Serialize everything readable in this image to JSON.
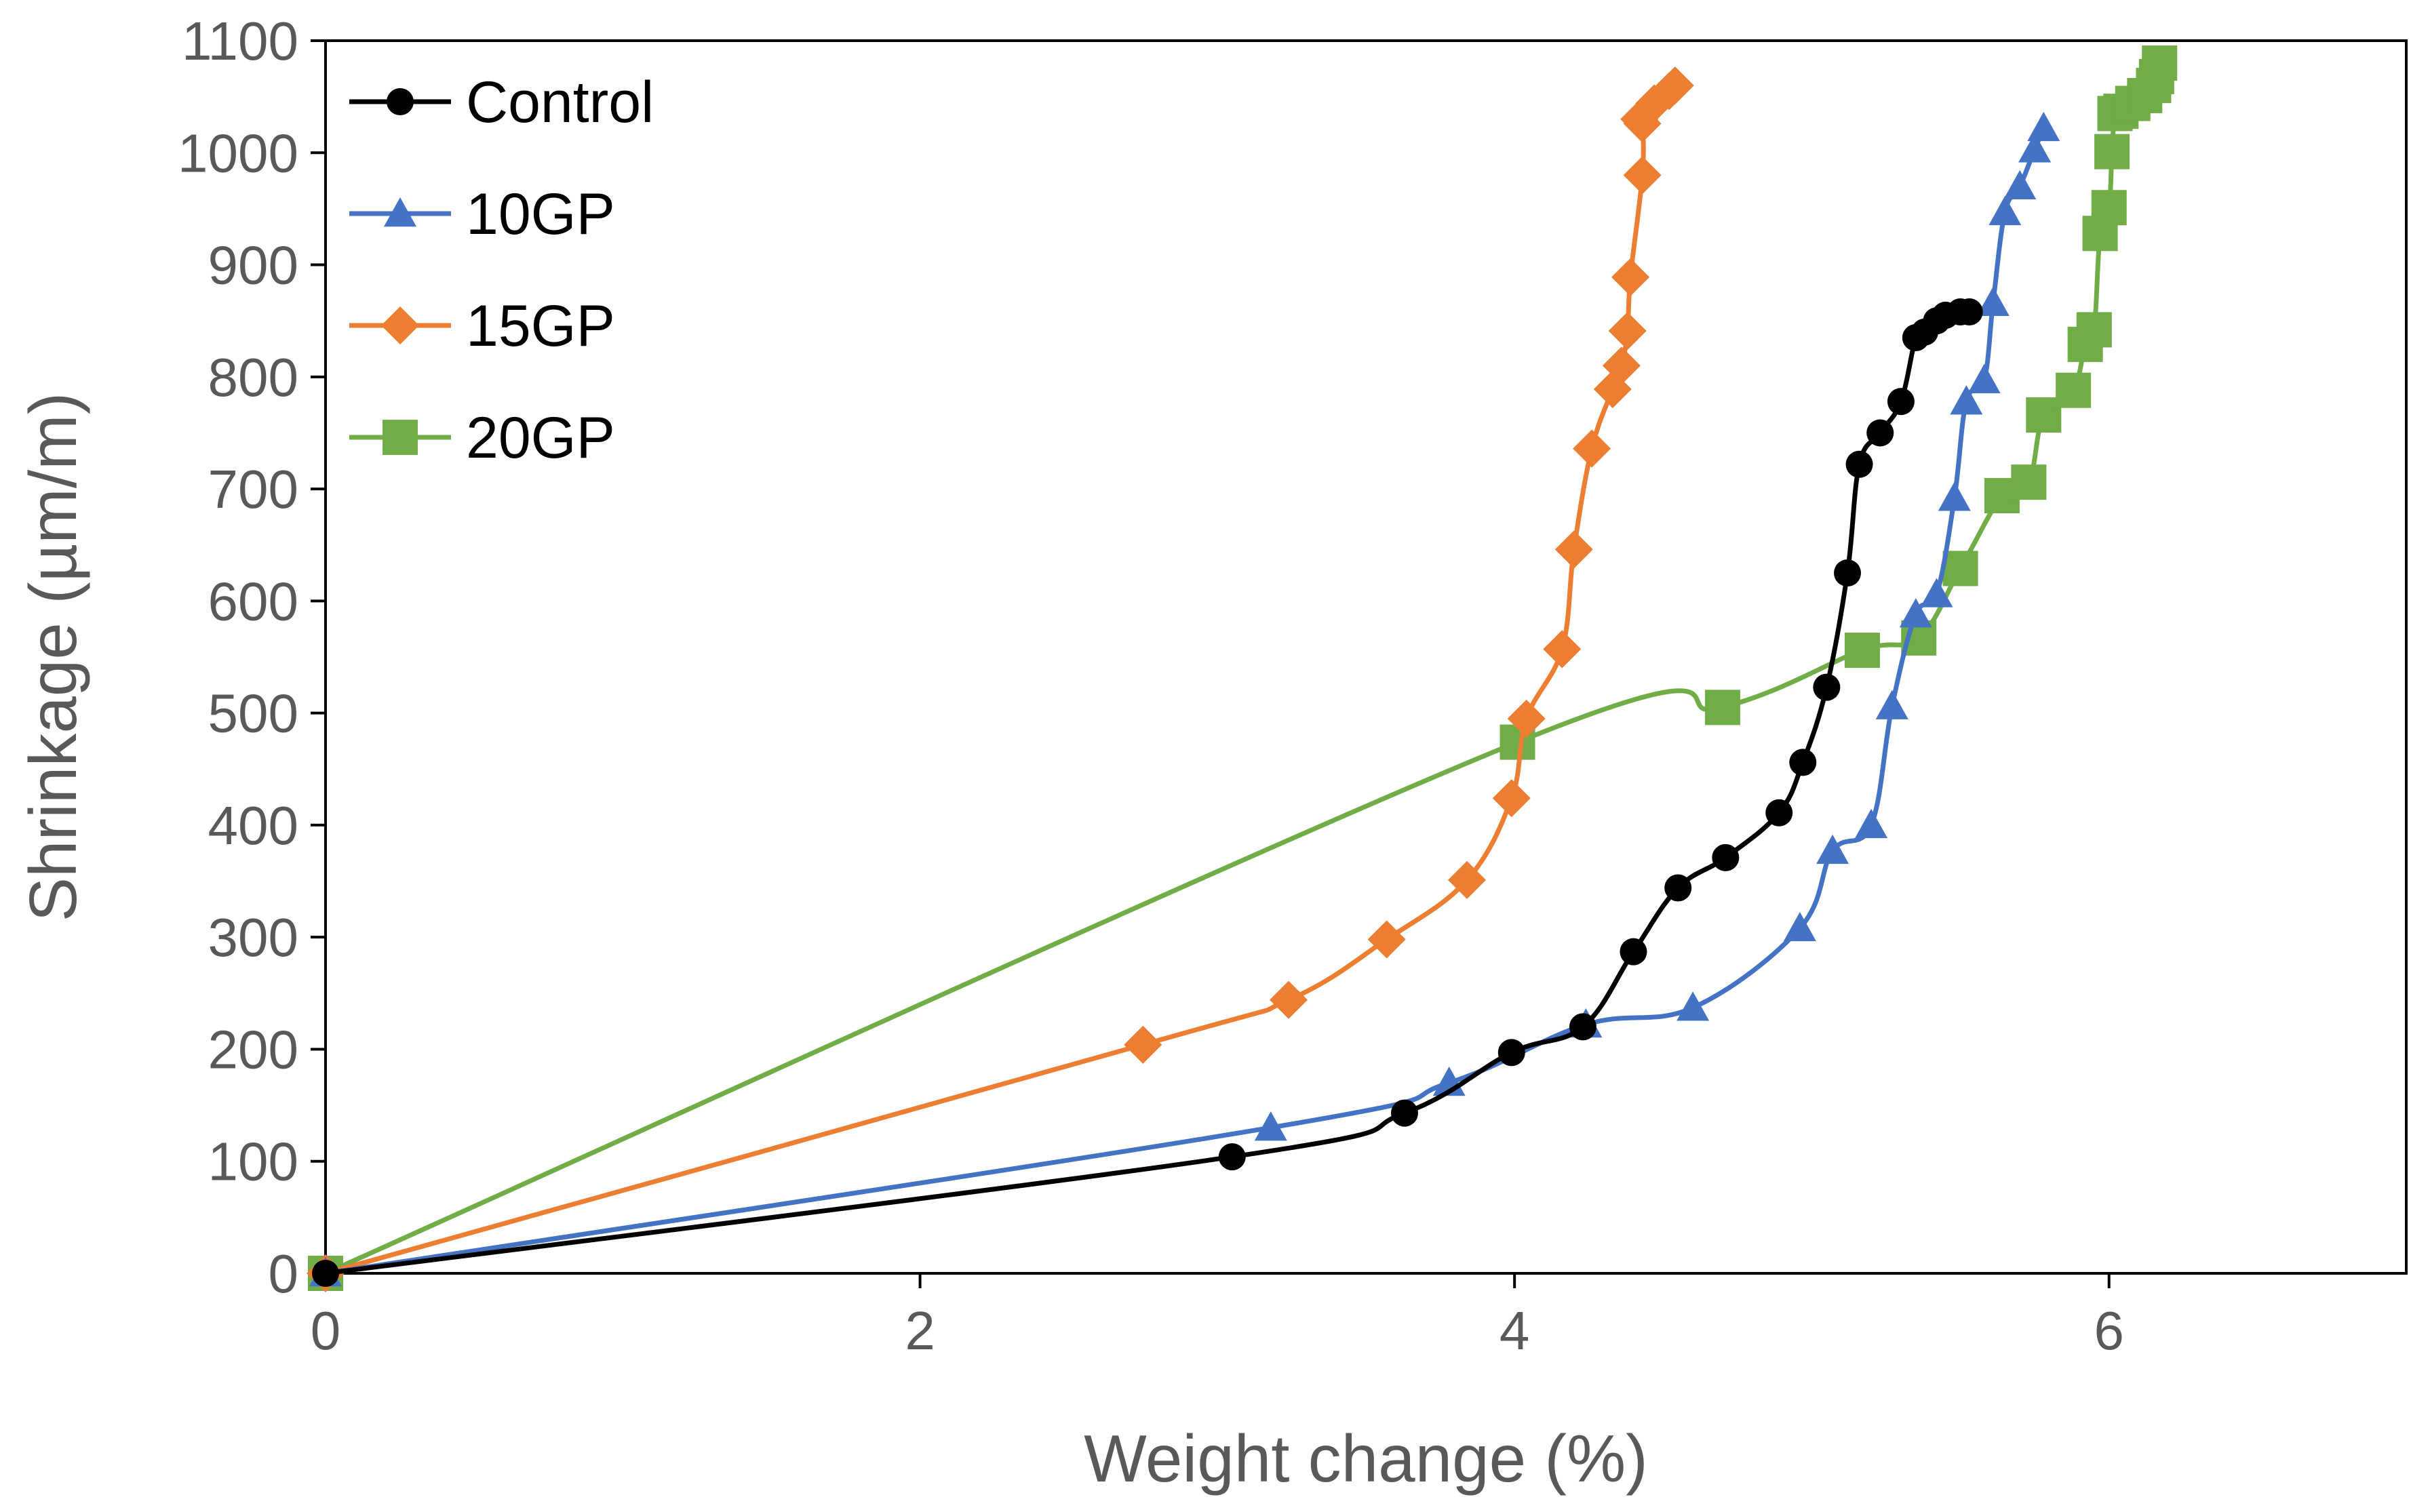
{
  "chart_data": {
    "type": "line",
    "title": "",
    "xlabel": "Weight change (%)",
    "ylabel": "Shrinkage (µm/m)",
    "xlim": [
      0,
      7
    ],
    "ylim": [
      0,
      1100
    ],
    "xticks": [
      0,
      2,
      4,
      6
    ],
    "xtick_labels": [
      "0",
      "2",
      "4",
      "6"
    ],
    "yticks": [
      0,
      100,
      200,
      300,
      400,
      500,
      600,
      700,
      800,
      900,
      1000,
      1100
    ],
    "ytick_labels": [
      "0",
      "100",
      "200",
      "300",
      "400",
      "500",
      "600",
      "700",
      "800",
      "900",
      "1000",
      "1100"
    ],
    "grid": false,
    "legend_position": "top-left",
    "series": [
      {
        "name": "Control",
        "color": "#000000",
        "marker": "circle",
        "x": [
          0,
          3.05,
          3.63,
          3.99,
          4.23,
          4.4,
          4.55,
          4.71,
          4.89,
          4.97,
          5.05,
          5.12,
          5.16,
          5.23,
          5.3,
          5.35,
          5.38,
          5.42,
          5.45,
          5.5,
          5.53
        ],
        "y": [
          0,
          104,
          143,
          197,
          220,
          287,
          344,
          371,
          411,
          456,
          523,
          625,
          722,
          750,
          778,
          835,
          840,
          850,
          855,
          858,
          858
        ]
      },
      {
        "name": "10GP",
        "color": "#4472C4",
        "marker": "triangle",
        "x": [
          0,
          3.18,
          3.78,
          4.24,
          4.6,
          4.96,
          5.07,
          5.2,
          5.27,
          5.35,
          5.42,
          5.48,
          5.52,
          5.58,
          5.61,
          5.65,
          5.7,
          5.75,
          5.78
        ],
        "y": [
          0,
          130,
          170,
          222,
          237,
          308,
          377,
          400,
          506,
          588,
          606,
          692,
          778,
          797,
          866,
          947,
          970,
          1003,
          1022
        ],
        "y_labels_note": ""
      },
      {
        "name": "15GP",
        "color": "#ED7D31",
        "marker": "diamond",
        "x": [
          0,
          2.75,
          3.24,
          3.57,
          3.84,
          3.99,
          4.04,
          4.16,
          4.2,
          4.26,
          4.33,
          4.36,
          4.38,
          4.39,
          4.43,
          4.43,
          4.42,
          4.47,
          4.52,
          4.54
        ],
        "y": [
          0,
          204,
          244,
          298,
          351,
          424,
          495,
          557,
          646,
          736,
          789,
          810,
          841,
          889,
          980,
          1026,
          1030,
          1044,
          1055,
          1060
        ]
      },
      {
        "name": "20GP",
        "color": "#70AD47",
        "marker": "square",
        "x": [
          0,
          4.01,
          4.7,
          5.17,
          5.36,
          5.5,
          5.64,
          5.73,
          5.78,
          5.88,
          5.92,
          5.95,
          5.97,
          6.0,
          6.01,
          6.02,
          6.04,
          6.08,
          6.12,
          6.15,
          6.16,
          6.17
        ],
        "y": [
          0,
          474,
          505,
          556,
          567,
          629,
          694,
          706,
          766,
          788,
          829,
          842,
          928,
          951,
          1001,
          1035,
          1037,
          1044,
          1051,
          1060,
          1068,
          1080
        ]
      }
    ]
  }
}
